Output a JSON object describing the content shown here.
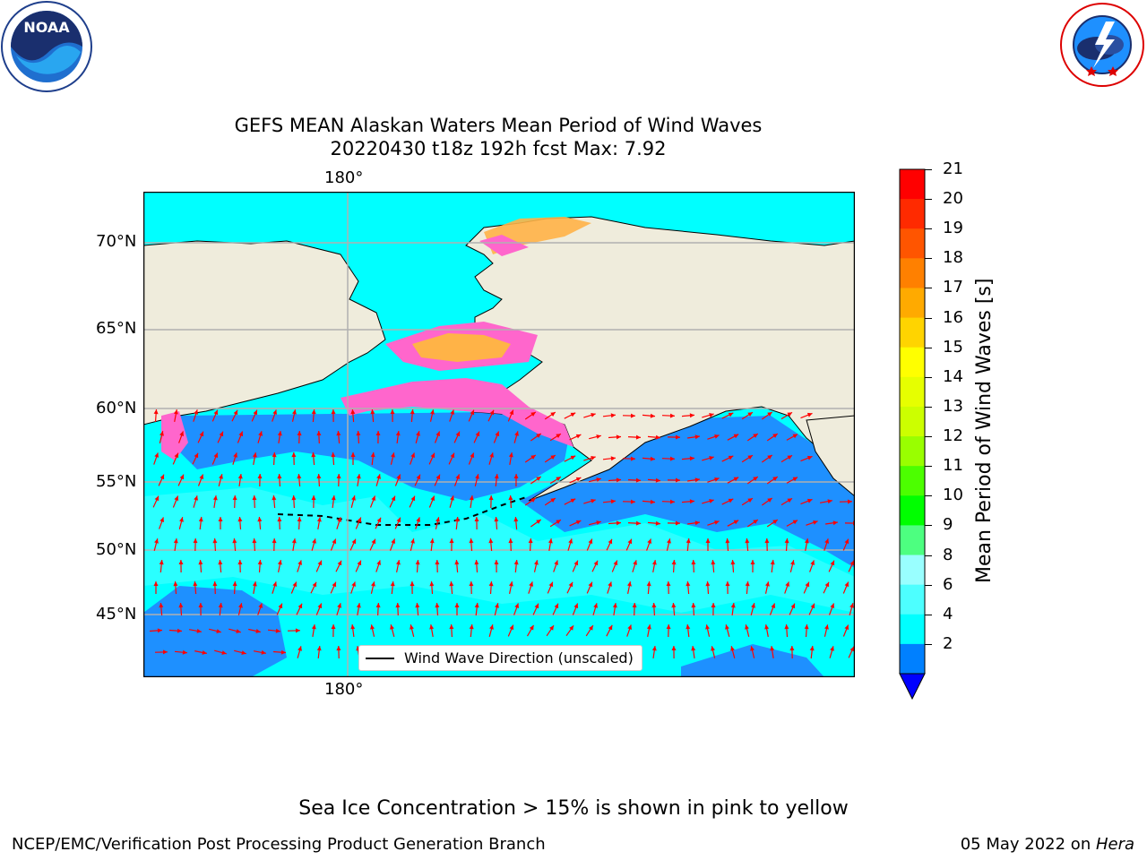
{
  "title": {
    "line1": "GEFS MEAN Alaskan Waters Mean Period of Wind Waves",
    "line2": "20220430 t18z 192h fcst   Max: 7.92"
  },
  "logos": {
    "noaa_text": "NOAA",
    "nws_ring": "NATIONAL WEATHER SERVICE"
  },
  "map": {
    "lon_label_top": "180°",
    "lon_label_bottom": "180°",
    "lat_labels": [
      "70°N",
      "65°N",
      "60°N",
      "55°N",
      "50°N",
      "45°N"
    ],
    "legend_label": "Wind Wave Direction (unscaled)",
    "colors": {
      "land": "#efecdc",
      "ocean_light": "#00ffff",
      "ocean_mid": "#1e90ff",
      "ice_pink": "#ff66cc",
      "ice_orange": "#ffb347",
      "arrows": "#ff0000"
    }
  },
  "colorbar": {
    "title": "Mean Period of Wind Waves [s]",
    "ticks": [
      "21",
      "20",
      "19",
      "18",
      "17",
      "16",
      "15",
      "14",
      "13",
      "12",
      "11",
      "10",
      "9",
      "8",
      "6",
      "4",
      "2"
    ],
    "colors": [
      "#ff0000",
      "#ff2a00",
      "#ff5500",
      "#ff8000",
      "#ffaa00",
      "#ffd400",
      "#ffff00",
      "#e6ff00",
      "#ccff00",
      "#99ff00",
      "#4cff00",
      "#00ff00",
      "#4dff80",
      "#99ffff",
      "#4dffff",
      "#00ffff",
      "#0080ff"
    ],
    "extend_color": "#0000ff"
  },
  "notes": {
    "ice": "Sea Ice Concentration > 15% is shown in pink to yellow"
  },
  "footer": {
    "left": "NCEP/EMC/Verification Post Processing Product Generation Branch",
    "right_date": "05 May 2022 on ",
    "right_host": "Hera"
  }
}
